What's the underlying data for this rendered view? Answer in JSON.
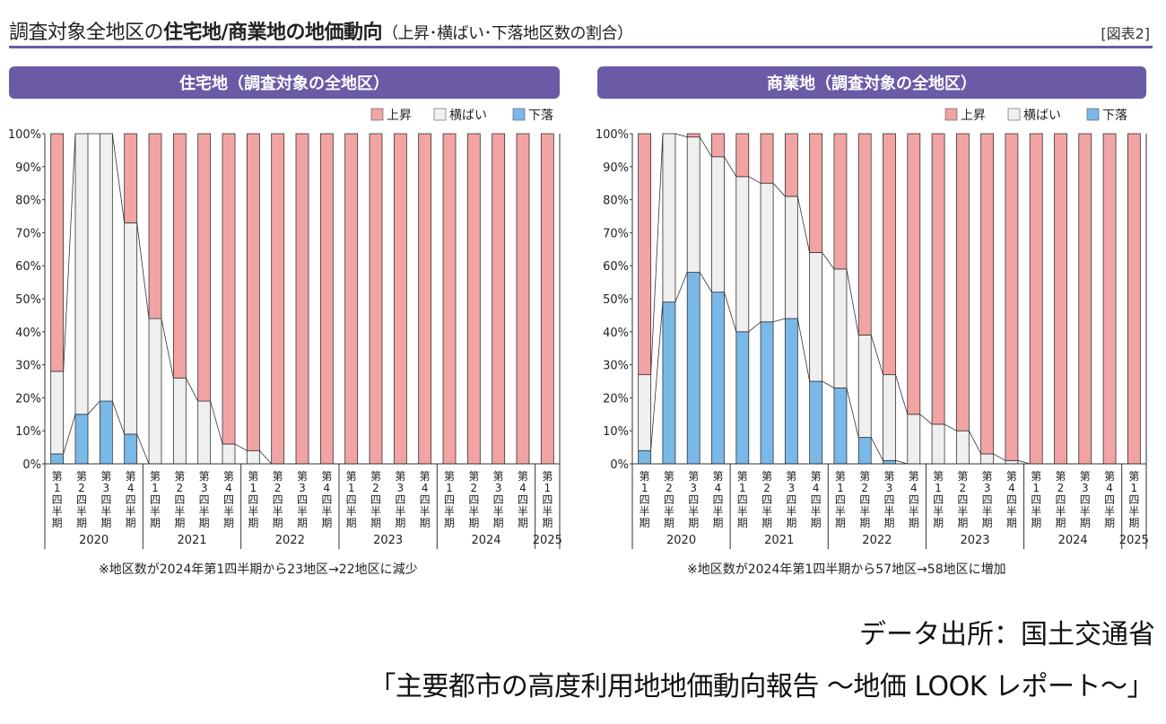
{
  "header": {
    "title_prefix": "調査対象全地区の",
    "title_bold": "住宅地/商業地の地価動向",
    "title_suffix": "（上昇･横ばい･下落地区数の割合）",
    "figure_no": "[図表2]"
  },
  "colors": {
    "up": "#f2a3a3",
    "flat": "#efefef",
    "down": "#7ab8e8",
    "accent": "#6b5aa6"
  },
  "legend": [
    "上昇",
    "横ばい",
    "下落"
  ],
  "quarter_label_chars": [
    "第",
    "1",
    "四",
    "半",
    "期"
  ],
  "quarter_numbers": [
    "1",
    "2",
    "3",
    "4",
    "1",
    "2",
    "3",
    "4",
    "1",
    "2",
    "3",
    "4",
    "1",
    "2",
    "3",
    "4",
    "1",
    "2",
    "3",
    "4",
    "1"
  ],
  "year_labels": [
    "2020",
    "2021",
    "2022",
    "2023",
    "2024",
    "2025"
  ],
  "y_ticks": [
    "0%",
    "10%",
    "20%",
    "30%",
    "40%",
    "50%",
    "60%",
    "70%",
    "80%",
    "90%",
    "100%"
  ],
  "chart_data": [
    {
      "type": "bar",
      "title": "住宅地（調査対象の全地区）",
      "stacked": true,
      "ylim": [
        0,
        100
      ],
      "categories": [
        "2020 第1四半期",
        "2020 第2四半期",
        "2020 第3四半期",
        "2020 第4四半期",
        "2021 第1四半期",
        "2021 第2四半期",
        "2021 第3四半期",
        "2021 第4四半期",
        "2022 第1四半期",
        "2022 第2四半期",
        "2022 第3四半期",
        "2022 第4四半期",
        "2023 第1四半期",
        "2023 第2四半期",
        "2023 第3四半期",
        "2023 第4四半期",
        "2024 第1四半期",
        "2024 第2四半期",
        "2024 第3四半期",
        "2024 第4四半期",
        "2025 第1四半期"
      ],
      "series": [
        {
          "name": "下落",
          "values": [
            3,
            15,
            19,
            9,
            0,
            0,
            0,
            0,
            0,
            0,
            0,
            0,
            0,
            0,
            0,
            0,
            0,
            0,
            0,
            0,
            0
          ]
        },
        {
          "name": "横ばい",
          "values": [
            25,
            85,
            81,
            64,
            44,
            26,
            19,
            6,
            4,
            0,
            0,
            0,
            0,
            0,
            0,
            0,
            0,
            0,
            0,
            0,
            0
          ]
        },
        {
          "name": "上昇",
          "values": [
            72,
            0,
            0,
            27,
            56,
            74,
            81,
            94,
            96,
            100,
            100,
            100,
            100,
            100,
            100,
            100,
            100,
            100,
            100,
            100,
            100
          ]
        }
      ],
      "legend_position": "top-right",
      "note": "※地区数が2024年第1四半期から23地区→22地区に減少"
    },
    {
      "type": "bar",
      "title": "商業地（調査対象の全地区）",
      "stacked": true,
      "ylim": [
        0,
        100
      ],
      "categories": [
        "2020 第1四半期",
        "2020 第2四半期",
        "2020 第3四半期",
        "2020 第4四半期",
        "2021 第1四半期",
        "2021 第2四半期",
        "2021 第3四半期",
        "2021 第4四半期",
        "2022 第1四半期",
        "2022 第2四半期",
        "2022 第3四半期",
        "2022 第4四半期",
        "2023 第1四半期",
        "2023 第2四半期",
        "2023 第3四半期",
        "2023 第4四半期",
        "2024 第1四半期",
        "2024 第2四半期",
        "2024 第3四半期",
        "2024 第4四半期",
        "2025 第1四半期"
      ],
      "series": [
        {
          "name": "下落",
          "values": [
            4,
            49,
            58,
            52,
            40,
            43,
            44,
            25,
            23,
            8,
            1,
            0,
            0,
            0,
            0,
            0,
            0,
            0,
            0,
            0,
            0
          ]
        },
        {
          "name": "横ばい",
          "values": [
            23,
            51,
            41,
            41,
            47,
            42,
            37,
            39,
            36,
            31,
            26,
            15,
            12,
            10,
            3,
            1,
            0,
            0,
            0,
            0,
            0
          ]
        },
        {
          "name": "上昇",
          "values": [
            73,
            0,
            1,
            7,
            13,
            15,
            19,
            36,
            41,
            61,
            73,
            85,
            88,
            90,
            97,
            99,
            100,
            100,
            100,
            100,
            100
          ]
        }
      ],
      "legend_position": "top-right",
      "note": "※地区数が2024年第1四半期から57地区→58地区に増加"
    }
  ],
  "footer": {
    "source": "データ出所：国土交通省",
    "report": "「主要都市の高度利用地地価動向報告 ～地価 LOOK レポート～」"
  }
}
